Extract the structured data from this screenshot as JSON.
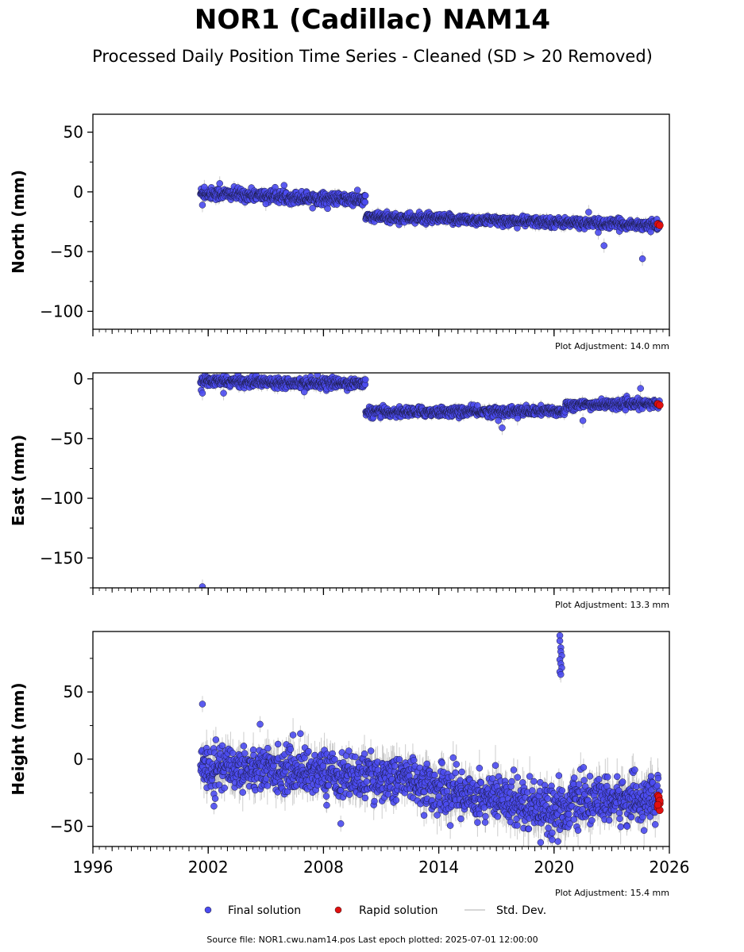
{
  "title": "NOR1 (Cadillac) NAM14",
  "subtitle": "Processed Daily Position Time Series - Cleaned (SD > 20 Removed)",
  "source_note": "Source file: NOR1.cwu.nam14.pos  Last epoch plotted: 2025-07-01 12:00:00",
  "legend": {
    "final": "Final solution",
    "rapid": "Rapid solution",
    "std": "Std. Dev."
  },
  "colors": {
    "final": "#4b4bf0",
    "rapid": "#e01010",
    "std": "#b8b8b8"
  },
  "chart_data": [
    {
      "type": "scatter",
      "ylabel": "North (mm)",
      "xlim": [
        1996,
        2026
      ],
      "ylim": [
        -115,
        65
      ],
      "yticks": [
        50,
        0,
        -50,
        -100
      ],
      "xticks": [
        1996,
        2002,
        2008,
        2014,
        2020,
        2026
      ],
      "show_xtick_labels": false,
      "plot_adjustment": "Plot Adjustment: 14.0 mm",
      "trend": [
        {
          "from": 2001.6,
          "to": 2010.2,
          "y0": -1,
          "y1": -7,
          "noise": 2.5,
          "std": 3
        },
        {
          "from": 2010.2,
          "to": 2025.5,
          "y0": -21,
          "y1": -28,
          "noise": 2.0,
          "std": 3
        }
      ],
      "outliers": [
        [
          2001.7,
          -11
        ],
        [
          2001.8,
          4
        ],
        [
          2002.6,
          7
        ],
        [
          2005.0,
          -10
        ],
        [
          2022.6,
          -45
        ],
        [
          2024.6,
          -56
        ],
        [
          2021.8,
          -17
        ],
        [
          2022.3,
          -34
        ]
      ],
      "rapid": [
        [
          2025.4,
          -27
        ],
        [
          2025.5,
          -28
        ]
      ]
    },
    {
      "type": "scatter",
      "ylabel": "East (mm)",
      "xlim": [
        1996,
        2026
      ],
      "ylim": [
        -175,
        5
      ],
      "yticks": [
        0,
        -50,
        -100,
        -150
      ],
      "xticks": [
        1996,
        2002,
        2008,
        2014,
        2020,
        2026
      ],
      "show_xtick_labels": false,
      "plot_adjustment": "Plot Adjustment: 13.3 mm",
      "trend": [
        {
          "from": 2001.6,
          "to": 2010.2,
          "y0": -2,
          "y1": -4,
          "noise": 2.0,
          "std": 3
        },
        {
          "from": 2010.2,
          "to": 2020.6,
          "y0": -28,
          "y1": -27,
          "noise": 2.0,
          "std": 3
        },
        {
          "from": 2020.6,
          "to": 2025.5,
          "y0": -22,
          "y1": -21,
          "noise": 1.8,
          "std": 3
        }
      ],
      "outliers": [
        [
          2001.7,
          -174
        ],
        [
          2001.7,
          -12
        ],
        [
          2007.0,
          -11
        ],
        [
          2002.8,
          -12
        ],
        [
          2017.1,
          -35
        ],
        [
          2017.3,
          -41
        ],
        [
          2018.1,
          -33
        ],
        [
          2024.5,
          -8
        ],
        [
          2021.5,
          -35
        ]
      ],
      "rapid": [
        [
          2025.4,
          -21
        ],
        [
          2025.5,
          -22
        ]
      ]
    },
    {
      "type": "scatter",
      "ylabel": "Height (mm)",
      "xlim": [
        1996,
        2026
      ],
      "ylim": [
        -65,
        95
      ],
      "yticks": [
        50,
        0,
        -50
      ],
      "xticks": [
        1996,
        2002,
        2008,
        2014,
        2020,
        2026
      ],
      "show_xtick_labels": true,
      "plot_adjustment": "Plot Adjustment: 15.4 mm",
      "trend": [
        {
          "from": 2001.6,
          "to": 2008.5,
          "y0": -5,
          "y1": -10,
          "noise": 8,
          "std": 9
        },
        {
          "from": 2008.5,
          "to": 2013.0,
          "y0": -12,
          "y1": -15,
          "noise": 8,
          "std": 9
        },
        {
          "from": 2013.0,
          "to": 2020.8,
          "y0": -20,
          "y1": -38,
          "noise": 9,
          "std": 10
        },
        {
          "from": 2020.8,
          "to": 2025.5,
          "y0": -32,
          "y1": -30,
          "noise": 8,
          "std": 10
        }
      ],
      "outliers": [
        [
          2001.7,
          41
        ],
        [
          2004.7,
          26
        ],
        [
          2006.8,
          19
        ],
        [
          2008.9,
          -48
        ],
        [
          2002.3,
          -35
        ],
        [
          2020.3,
          92
        ],
        [
          2020.3,
          88
        ],
        [
          2020.35,
          83
        ],
        [
          2020.35,
          80
        ],
        [
          2020.4,
          77
        ],
        [
          2020.3,
          74
        ],
        [
          2020.35,
          71
        ],
        [
          2020.4,
          68
        ],
        [
          2020.3,
          65
        ],
        [
          2020.35,
          63
        ],
        [
          2019.3,
          -62
        ],
        [
          2019.9,
          -60
        ],
        [
          2024.2,
          -8
        ]
      ],
      "rapid": [
        [
          2025.4,
          -27
        ],
        [
          2025.45,
          -30
        ],
        [
          2025.5,
          -33
        ],
        [
          2025.4,
          -36
        ],
        [
          2025.5,
          -38
        ],
        [
          2025.45,
          -28
        ],
        [
          2025.5,
          -31
        ],
        [
          2025.4,
          -34
        ]
      ]
    }
  ]
}
